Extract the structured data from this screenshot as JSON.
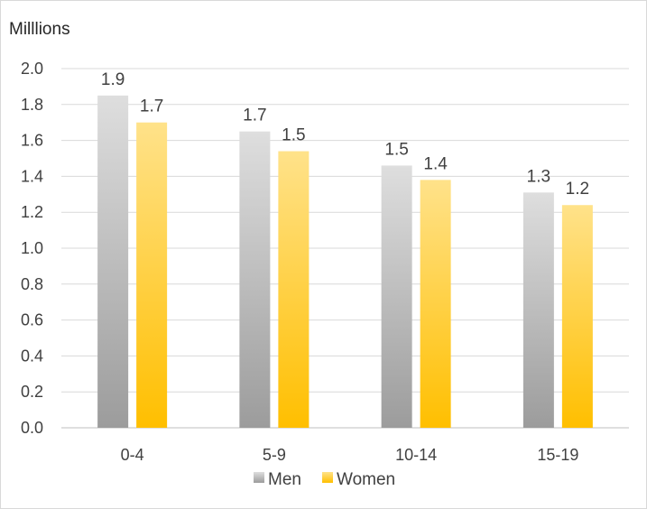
{
  "chart_data": {
    "type": "bar",
    "unit_label": "Milllions",
    "categories": [
      "0-4",
      "5-9",
      "10-14",
      "15-19"
    ],
    "series": [
      {
        "name": "Men",
        "values": [
          1.85,
          1.65,
          1.46,
          1.31
        ],
        "labels": [
          "1.9",
          "1.7",
          "1.5",
          "1.3"
        ],
        "color": "#a6a6a6"
      },
      {
        "name": "Women",
        "values": [
          1.7,
          1.54,
          1.38,
          1.24
        ],
        "labels": [
          "1.7",
          "1.5",
          "1.4",
          "1.2"
        ],
        "color": "#ffc000"
      }
    ],
    "ylim": [
      0,
      2.0
    ],
    "yticks": [
      "0.0",
      "0.2",
      "0.4",
      "0.6",
      "0.8",
      "1.0",
      "1.2",
      "1.4",
      "1.6",
      "1.8",
      "2.0"
    ],
    "grid": true,
    "legend": "bottom"
  }
}
